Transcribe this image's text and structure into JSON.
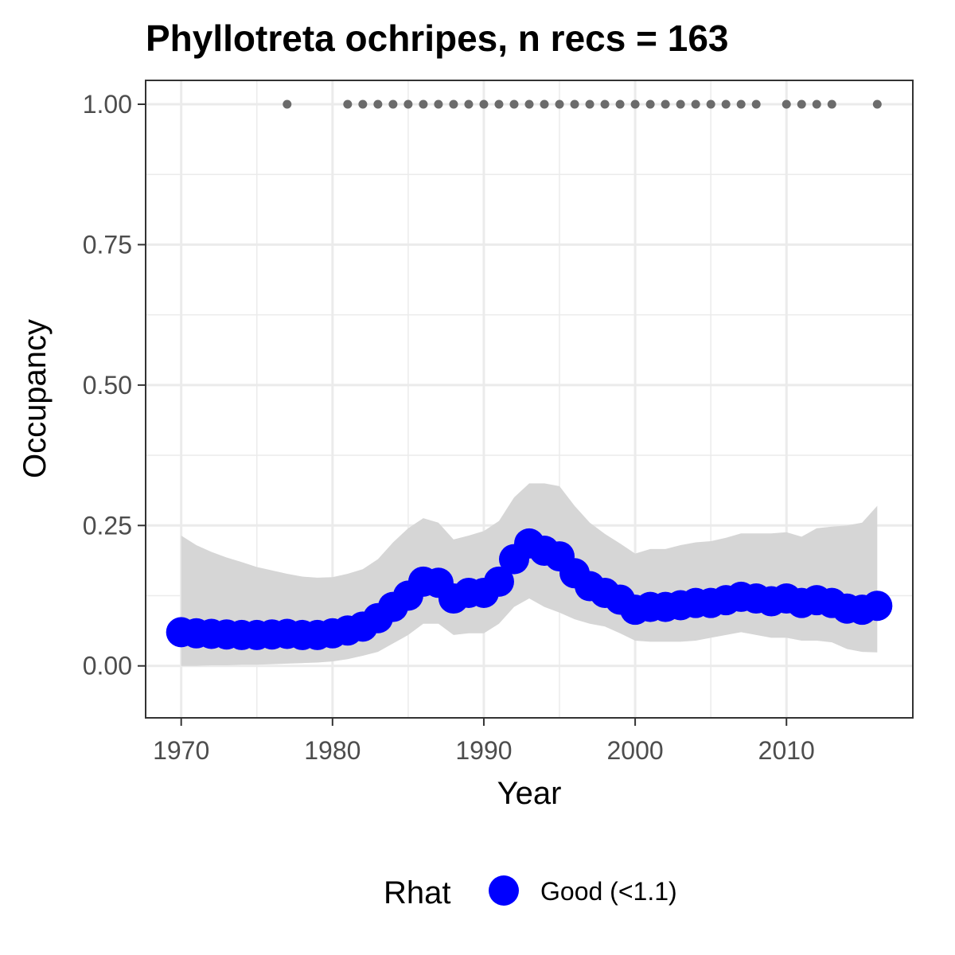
{
  "chart_data": {
    "type": "line",
    "title": "Phyllotreta ochripes, n recs = 163",
    "xlabel": "Year",
    "ylabel": "Occupancy",
    "xlim": [
      1967.65,
      1918.35
    ],
    "ylim": [
      -0.0925,
      1.0425
    ],
    "x_ticks": [
      1970,
      1980,
      1990,
      2000,
      2010
    ],
    "x_tick_labels": [
      "1970",
      "1980",
      "1990",
      "2000",
      "2010"
    ],
    "y_ticks": [
      0.0,
      0.25,
      0.5,
      0.75,
      1.0
    ],
    "y_tick_labels": [
      "0.00",
      "0.25",
      "0.50",
      "0.75",
      "1.00"
    ],
    "grid": true,
    "colors": {
      "series": "#0000ff",
      "ribbon": "#d6d6d6",
      "records": "#6b6b6b",
      "grid": "#ebebeb",
      "border": "#333333"
    },
    "legend": {
      "title": "Rhat",
      "position": "bottom",
      "entries": [
        {
          "label": "Good (<1.1)",
          "color": "#0000ff"
        }
      ]
    },
    "series": [
      {
        "name": "Good (<1.1)",
        "x": [
          1970,
          1971,
          1972,
          1973,
          1974,
          1975,
          1976,
          1977,
          1978,
          1979,
          1980,
          1981,
          1982,
          1983,
          1984,
          1985,
          1986,
          1987,
          1988,
          1989,
          1990,
          1991,
          1992,
          1993,
          1994,
          1995,
          1996,
          1997,
          1998,
          1999,
          2000,
          2001,
          2002,
          2003,
          2004,
          2005,
          2006,
          2007,
          2008,
          2009,
          2010,
          2011,
          2012,
          2013,
          2014,
          2015,
          2016
        ],
        "y": [
          0.06,
          0.058,
          0.057,
          0.056,
          0.055,
          0.055,
          0.056,
          0.057,
          0.055,
          0.055,
          0.058,
          0.063,
          0.07,
          0.085,
          0.105,
          0.125,
          0.15,
          0.148,
          0.12,
          0.13,
          0.13,
          0.15,
          0.19,
          0.218,
          0.205,
          0.195,
          0.165,
          0.142,
          0.13,
          0.118,
          0.1,
          0.105,
          0.105,
          0.108,
          0.112,
          0.112,
          0.117,
          0.123,
          0.12,
          0.115,
          0.12,
          0.112,
          0.117,
          0.112,
          0.102,
          0.1,
          0.107
        ],
        "lower": [
          0.0,
          0.0,
          0.001,
          0.001,
          0.002,
          0.002,
          0.003,
          0.004,
          0.005,
          0.006,
          0.008,
          0.012,
          0.018,
          0.025,
          0.04,
          0.055,
          0.075,
          0.075,
          0.055,
          0.058,
          0.058,
          0.075,
          0.105,
          0.12,
          0.105,
          0.095,
          0.083,
          0.075,
          0.07,
          0.058,
          0.045,
          0.043,
          0.043,
          0.043,
          0.045,
          0.05,
          0.055,
          0.06,
          0.055,
          0.05,
          0.05,
          0.045,
          0.045,
          0.042,
          0.03,
          0.025,
          0.024
        ],
        "upper": [
          0.232,
          0.215,
          0.203,
          0.193,
          0.185,
          0.176,
          0.17,
          0.164,
          0.159,
          0.157,
          0.158,
          0.164,
          0.172,
          0.19,
          0.22,
          0.245,
          0.263,
          0.255,
          0.225,
          0.232,
          0.24,
          0.258,
          0.3,
          0.325,
          0.325,
          0.32,
          0.285,
          0.255,
          0.235,
          0.218,
          0.2,
          0.208,
          0.208,
          0.215,
          0.22,
          0.222,
          0.228,
          0.236,
          0.236,
          0.236,
          0.238,
          0.23,
          0.245,
          0.248,
          0.25,
          0.255,
          0.285
        ]
      },
      {
        "name": "records",
        "x": [
          1977,
          1981,
          1982,
          1983,
          1984,
          1985,
          1986,
          1987,
          1988,
          1989,
          1990,
          1991,
          1992,
          1993,
          1994,
          1995,
          1996,
          1997,
          1998,
          1999,
          2000,
          2001,
          2002,
          2003,
          2004,
          2005,
          2006,
          2007,
          2008,
          2010,
          2011,
          2012,
          2013,
          2016
        ],
        "y": [
          1,
          1,
          1,
          1,
          1,
          1,
          1,
          1,
          1,
          1,
          1,
          1,
          1,
          1,
          1,
          1,
          1,
          1,
          1,
          1,
          1,
          1,
          1,
          1,
          1,
          1,
          1,
          1,
          1,
          1,
          1,
          1,
          1,
          1
        ]
      }
    ]
  }
}
